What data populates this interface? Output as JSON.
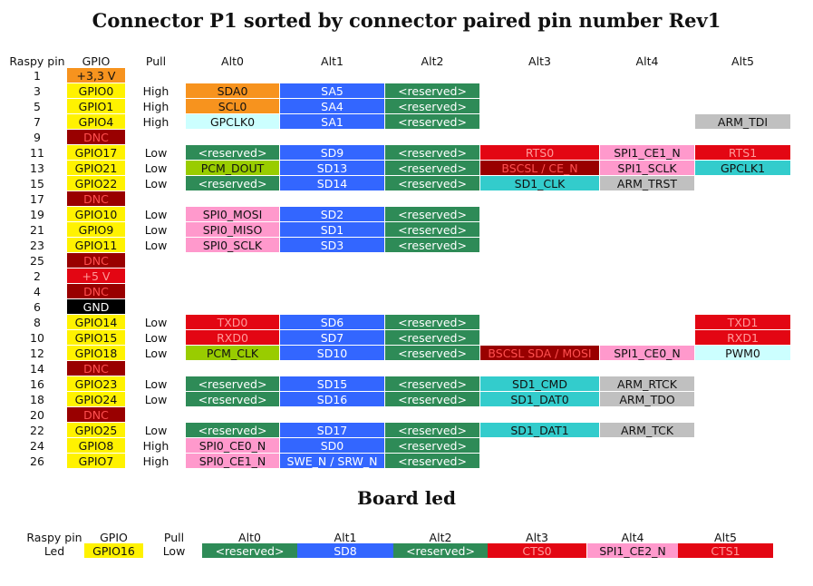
{
  "title": "Connector P1 sorted by connector paired pin number Rev1",
  "headers": [
    "Raspy pin",
    "GPIO",
    "Pull",
    "Alt0",
    "Alt1",
    "Alt2",
    "Alt3",
    "Alt4",
    "Alt5"
  ],
  "colors": {
    "orange": "#f7931e",
    "yellow": "#fff200",
    "darkred": "#990000",
    "red": "#e30613",
    "green": "#2e8b57",
    "blue": "#3366ff",
    "pink": "#ff99cc",
    "lime": "#99cc00",
    "cyan": "#33cccc",
    "paleblue": "#ccffff",
    "gray": "#c0c0c0",
    "black": "#000000"
  },
  "rows": [
    {
      "pin": "1",
      "gpio": "+3,3 V",
      "gc": "orange",
      "pull": "",
      "alts": []
    },
    {
      "pin": "3",
      "gpio": "GPIO0",
      "gc": "yellow",
      "pull": "High",
      "alts": [
        [
          "SDA0",
          "orange"
        ],
        [
          "SA5",
          "blue"
        ],
        [
          "<reserved>",
          "green"
        ]
      ]
    },
    {
      "pin": "5",
      "gpio": "GPIO1",
      "gc": "yellow",
      "pull": "High",
      "alts": [
        [
          "SCL0",
          "orange"
        ],
        [
          "SA4",
          "blue"
        ],
        [
          "<reserved>",
          "green"
        ]
      ]
    },
    {
      "pin": "7",
      "gpio": "GPIO4",
      "gc": "yellow",
      "pull": "High",
      "alts": [
        [
          "GPCLK0",
          "paleblue"
        ],
        [
          "SA1",
          "blue"
        ],
        [
          "<reserved>",
          "green"
        ],
        [
          "",
          ""
        ],
        [
          "",
          ""
        ],
        [
          "ARM_TDI",
          "gray"
        ]
      ]
    },
    {
      "pin": "9",
      "gpio": "DNC",
      "gc": "darkred",
      "pull": "",
      "alts": []
    },
    {
      "pin": "11",
      "gpio": "GPIO17",
      "gc": "yellow",
      "pull": "Low",
      "alts": [
        [
          "<reserved>",
          "green"
        ],
        [
          "SD9",
          "blue"
        ],
        [
          "<reserved>",
          "green"
        ],
        [
          "RTS0",
          "red"
        ],
        [
          "SPI1_CE1_N",
          "pink"
        ],
        [
          "RTS1",
          "red"
        ]
      ]
    },
    {
      "pin": "13",
      "gpio": "GPIO21",
      "gc": "yellow",
      "pull": "Low",
      "alts": [
        [
          "PCM_DOUT",
          "lime"
        ],
        [
          "SD13",
          "blue"
        ],
        [
          "<reserved>",
          "green"
        ],
        [
          "BSCSL / CE_N",
          "darkred"
        ],
        [
          "SPI1_SCLK",
          "pink"
        ],
        [
          "GPCLK1",
          "cyan"
        ]
      ]
    },
    {
      "pin": "15",
      "gpio": "GPIO22",
      "gc": "yellow",
      "pull": "Low",
      "alts": [
        [
          "<reserved>",
          "green"
        ],
        [
          "SD14",
          "blue"
        ],
        [
          "<reserved>",
          "green"
        ],
        [
          "SD1_CLK",
          "cyan"
        ],
        [
          "ARM_TRST",
          "gray"
        ]
      ]
    },
    {
      "pin": "17",
      "gpio": "DNC",
      "gc": "darkred",
      "pull": "",
      "alts": []
    },
    {
      "pin": "19",
      "gpio": "GPIO10",
      "gc": "yellow",
      "pull": "Low",
      "alts": [
        [
          "SPI0_MOSI",
          "pink"
        ],
        [
          "SD2",
          "blue"
        ],
        [
          "<reserved>",
          "green"
        ]
      ]
    },
    {
      "pin": "21",
      "gpio": "GPIO9",
      "gc": "yellow",
      "pull": "Low",
      "alts": [
        [
          "SPI0_MISO",
          "pink"
        ],
        [
          "SD1",
          "blue"
        ],
        [
          "<reserved>",
          "green"
        ]
      ]
    },
    {
      "pin": "23",
      "gpio": "GPIO11",
      "gc": "yellow",
      "pull": "Low",
      "alts": [
        [
          "SPI0_SCLK",
          "pink"
        ],
        [
          "SD3",
          "blue"
        ],
        [
          "<reserved>",
          "green"
        ]
      ]
    },
    {
      "pin": "25",
      "gpio": "DNC",
      "gc": "darkred",
      "pull": "",
      "alts": []
    },
    {
      "pin": "2",
      "gpio": "+5 V",
      "gc": "red",
      "pull": "",
      "alts": []
    },
    {
      "pin": "4",
      "gpio": "DNC",
      "gc": "darkred",
      "pull": "",
      "alts": []
    },
    {
      "pin": "6",
      "gpio": "GND",
      "gc": "black",
      "pull": "",
      "alts": []
    },
    {
      "pin": "8",
      "gpio": "GPIO14",
      "gc": "yellow",
      "pull": "Low",
      "alts": [
        [
          "TXD0",
          "red"
        ],
        [
          "SD6",
          "blue"
        ],
        [
          "<reserved>",
          "green"
        ],
        [
          "",
          ""
        ],
        [
          "",
          ""
        ],
        [
          "TXD1",
          "red"
        ]
      ]
    },
    {
      "pin": "10",
      "gpio": "GPIO15",
      "gc": "yellow",
      "pull": "Low",
      "alts": [
        [
          "RXD0",
          "red"
        ],
        [
          "SD7",
          "blue"
        ],
        [
          "<reserved>",
          "green"
        ],
        [
          "",
          ""
        ],
        [
          "",
          ""
        ],
        [
          "RXD1",
          "red"
        ]
      ]
    },
    {
      "pin": "12",
      "gpio": "GPIO18",
      "gc": "yellow",
      "pull": "Low",
      "alts": [
        [
          "PCM_CLK",
          "lime"
        ],
        [
          "SD10",
          "blue"
        ],
        [
          "<reserved>",
          "green"
        ],
        [
          "BSCSL SDA / MOSI",
          "darkred"
        ],
        [
          "SPI1_CE0_N",
          "pink"
        ],
        [
          "PWM0",
          "paleblue"
        ]
      ]
    },
    {
      "pin": "14",
      "gpio": "DNC",
      "gc": "darkred",
      "pull": "",
      "alts": []
    },
    {
      "pin": "16",
      "gpio": "GPIO23",
      "gc": "yellow",
      "pull": "Low",
      "alts": [
        [
          "<reserved>",
          "green"
        ],
        [
          "SD15",
          "blue"
        ],
        [
          "<reserved>",
          "green"
        ],
        [
          "SD1_CMD",
          "cyan"
        ],
        [
          "ARM_RTCK",
          "gray"
        ]
      ]
    },
    {
      "pin": "18",
      "gpio": "GPIO24",
      "gc": "yellow",
      "pull": "Low",
      "alts": [
        [
          "<reserved>",
          "green"
        ],
        [
          "SD16",
          "blue"
        ],
        [
          "<reserved>",
          "green"
        ],
        [
          "SD1_DAT0",
          "cyan"
        ],
        [
          "ARM_TDO",
          "gray"
        ]
      ]
    },
    {
      "pin": "20",
      "gpio": "DNC",
      "gc": "darkred",
      "pull": "",
      "alts": []
    },
    {
      "pin": "22",
      "gpio": "GPIO25",
      "gc": "yellow",
      "pull": "Low",
      "alts": [
        [
          "<reserved>",
          "green"
        ],
        [
          "SD17",
          "blue"
        ],
        [
          "<reserved>",
          "green"
        ],
        [
          "SD1_DAT1",
          "cyan"
        ],
        [
          "ARM_TCK",
          "gray"
        ]
      ]
    },
    {
      "pin": "24",
      "gpio": "GPIO8",
      "gc": "yellow",
      "pull": "High",
      "alts": [
        [
          "SPI0_CE0_N",
          "pink"
        ],
        [
          "SD0",
          "blue"
        ],
        [
          "<reserved>",
          "green"
        ]
      ]
    },
    {
      "pin": "26",
      "gpio": "GPIO7",
      "gc": "yellow",
      "pull": "High",
      "alts": [
        [
          "SPI0_CE1_N",
          "pink"
        ],
        [
          "SWE_N / SRW_N",
          "blue"
        ],
        [
          "<reserved>",
          "green"
        ]
      ]
    }
  ],
  "board": {
    "title": "Board led",
    "headers": [
      "Raspy pin",
      "GPIO",
      "Pull",
      "Alt0",
      "Alt1",
      "Alt2",
      "Alt3",
      "Alt4",
      "Alt5"
    ],
    "rows": [
      {
        "pin": "Led",
        "gpio": "GPIO16",
        "gc": "yellow",
        "pull": "Low",
        "alts": [
          [
            "<reserved>",
            "green"
          ],
          [
            "SD8",
            "blue"
          ],
          [
            "<reserved>",
            "green"
          ],
          [
            "CTS0",
            "red"
          ],
          [
            "SPI1_CE2_N",
            "pink"
          ],
          [
            "CTS1",
            "red"
          ]
        ]
      }
    ]
  }
}
